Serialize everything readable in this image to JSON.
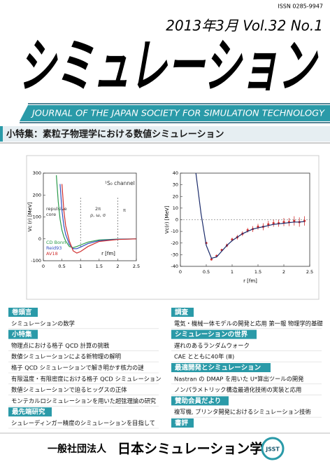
{
  "header": {
    "issn": "ISSN 0285-9947",
    "issue": "2013年3月 Vol.32 No.1",
    "title": "シミュレーション",
    "subtitle": "JOURNAL OF THE JAPAN SOCIETY FOR SIMULATION TECHNOLOGY"
  },
  "feature": "小特集：素粒子物理学における数値シミュレーション",
  "chart_data": [
    {
      "type": "line",
      "x": [
        0.35,
        0.4,
        0.45,
        0.5,
        0.55,
        0.6,
        0.7,
        0.8,
        0.9,
        1.0,
        1.2,
        1.5,
        2.0,
        2.5
      ],
      "series": [
        {
          "name": "CD Bonn",
          "color": "#2a9a4a",
          "values": [
            290,
            170,
            90,
            40,
            10,
            -10,
            -35,
            -40,
            -35,
            -28,
            -15,
            -5,
            -1,
            0
          ]
        },
        {
          "name": "Reid93",
          "color": "#3050c0",
          "values": [
            null,
            null,
            250,
            130,
            60,
            20,
            -25,
            -45,
            -45,
            -38,
            -22,
            -8,
            -2,
            0
          ]
        },
        {
          "name": "AV18",
          "color": "#d03030",
          "values": [
            null,
            null,
            null,
            250,
            130,
            60,
            -10,
            -55,
            -65,
            -58,
            -35,
            -12,
            -3,
            0
          ]
        }
      ],
      "xlim": [
        0,
        2.5
      ],
      "ylim": [
        -100,
        300
      ],
      "xticks": [
        0,
        0.5,
        1,
        1.5,
        2,
        2.5
      ],
      "yticks": [
        -100,
        0,
        100,
        200,
        300
      ],
      "xlabel": "r [fm]",
      "ylabel": "Vc (r) [MeV]",
      "annotations": [
        "¹S₀ channel",
        "repulsive",
        "core",
        "2π",
        "ρ, ω, σ",
        "π"
      ],
      "vlines": [
        1,
        2
      ],
      "legend": "lower left"
    },
    {
      "type": "line",
      "x": [
        0.3,
        0.4,
        0.5,
        0.6,
        0.7,
        0.8,
        0.9,
        1.0,
        1.1,
        1.2,
        1.3,
        1.4,
        1.5,
        1.6,
        1.7,
        1.8,
        1.9,
        2.0,
        2.1,
        2.2,
        2.3,
        2.4
      ],
      "series": [
        {
          "color": "#d03030",
          "marker": "point",
          "values": [
            null,
            null,
            -20,
            -34,
            -31,
            -26,
            -22,
            -17,
            -15,
            -12,
            -9,
            -8,
            -6,
            -6,
            -4,
            -3,
            -3,
            -2,
            -2,
            -1,
            -2,
            -1
          ],
          "errors": [
            null,
            null,
            1,
            1,
            1,
            1,
            1.5,
            1.5,
            2,
            2,
            2,
            2.5,
            2.5,
            3,
            3,
            3,
            3,
            3.5,
            3.5,
            4,
            4,
            4
          ]
        },
        {
          "color": "#1a2a6a",
          "values": [
            40,
            5,
            -22,
            -33,
            -32,
            -27,
            -22,
            -18,
            -15,
            -12,
            -10,
            -8,
            -7,
            -6,
            -5,
            -4,
            -3.5,
            -3,
            -2.5,
            -2,
            -2,
            -1.5
          ]
        }
      ],
      "xlim": [
        0,
        2.5
      ],
      "ylim": [
        -40,
        40
      ],
      "xticks": [
        0,
        0.5,
        1,
        1.5,
        2,
        2.5
      ],
      "yticks": [
        -40,
        -30,
        -20,
        -10,
        0,
        10,
        20,
        30,
        40
      ],
      "xlabel": "r [fm]",
      "ylabel": "Vc(r) [MeV]",
      "zero_line": true
    }
  ],
  "contents": {
    "left": [
      {
        "heading": "巻頭言",
        "items": [
          "シミュレーションの数学"
        ]
      },
      {
        "heading": "小特集",
        "items": [
          "物理点における格子 QCD 計算の挑戦",
          "数値シミュレーションによる新物理の解明",
          "格子 QCD シミュレーションで解き明かす核力の謎",
          "有限温度・有限密度における格子 QCD シミュレーション",
          "数値シミュレーションで迫るヒッグスの正体",
          "モンテカルロシミュレーションを用いた超弦理論の研究"
        ]
      },
      {
        "heading": "最先端研究",
        "items": [
          "シュレーディンガー精度のシミュレーションを目指して"
        ]
      }
    ],
    "right": [
      {
        "heading": "調査",
        "items": [
          "電気・機械一体モデルの開発と応用 第一報 物理学的基礎"
        ]
      },
      {
        "heading": "シミュレーションの世界",
        "items": [
          "遅れのあるランダムウォーク",
          "CAE とともに40年 (Ⅲ)"
        ]
      },
      {
        "heading": "最適開発とシミュレーション",
        "items": [
          "Nastran の DMAP を用いた U*算出ツールの開発",
          "ノンパラメトリック構造最適化技術の実装と応用"
        ]
      },
      {
        "heading": "賛助会員だより",
        "items": [
          "複写機, プリンタ開発におけるシミュレーション技術"
        ]
      },
      {
        "heading": "書評",
        "items": []
      }
    ]
  },
  "footer": {
    "organization_type": "一般社団法人",
    "organization": "日本シミュレーション学会",
    "logo": "JSST"
  }
}
